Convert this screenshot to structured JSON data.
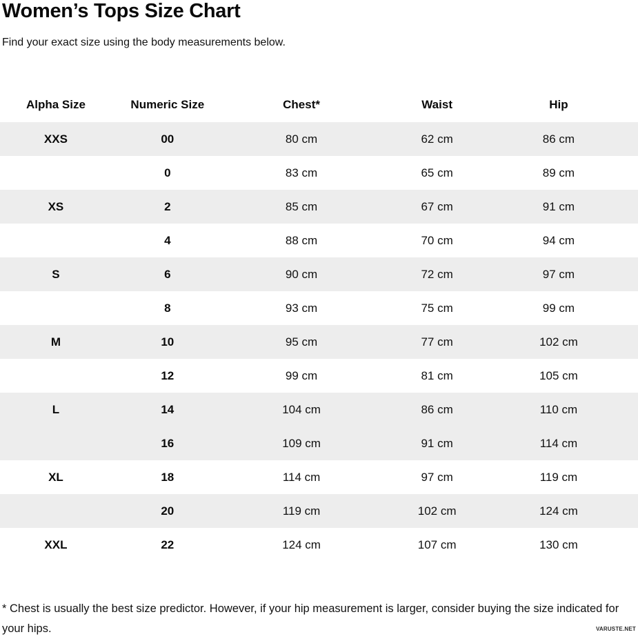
{
  "page": {
    "title": "Women’s Tops Size Chart",
    "subtitle": "Find your exact size using the body measurements below.",
    "footnote": "* Chest is usually the best size predictor. However, if your hip measurement is larger, consider buying the size indicated for your hips.",
    "watermark": "VARUSTE.NET"
  },
  "colors": {
    "stripe": "#ededed",
    "text": "#111111",
    "background": "#ffffff"
  },
  "table": {
    "columns": [
      "Alpha Size",
      "Numeric Size",
      "Chest*",
      "Waist",
      "Hip"
    ],
    "rows": [
      {
        "alpha": "XXS",
        "numeric": "00",
        "chest": "80 cm",
        "waist": "62 cm",
        "hip": "86 cm",
        "shaded": true
      },
      {
        "alpha": "",
        "numeric": "0",
        "chest": "83 cm",
        "waist": "65 cm",
        "hip": "89 cm",
        "shaded": false
      },
      {
        "alpha": "XS",
        "numeric": "2",
        "chest": "85 cm",
        "waist": "67 cm",
        "hip": "91 cm",
        "shaded": true
      },
      {
        "alpha": "",
        "numeric": "4",
        "chest": "88 cm",
        "waist": "70 cm",
        "hip": "94 cm",
        "shaded": false
      },
      {
        "alpha": "S",
        "numeric": "6",
        "chest": "90 cm",
        "waist": "72 cm",
        "hip": "97 cm",
        "shaded": true
      },
      {
        "alpha": "",
        "numeric": "8",
        "chest": "93 cm",
        "waist": "75 cm",
        "hip": "99 cm",
        "shaded": false
      },
      {
        "alpha": "M",
        "numeric": "10",
        "chest": "95 cm",
        "waist": "77 cm",
        "hip": "102 cm",
        "shaded": true
      },
      {
        "alpha": "",
        "numeric": "12",
        "chest": "99 cm",
        "waist": "81 cm",
        "hip": "105 cm",
        "shaded": false
      },
      {
        "alpha": "L",
        "numeric": "14",
        "chest": "104 cm",
        "waist": "86 cm",
        "hip": "110 cm",
        "shaded": true
      },
      {
        "alpha": "",
        "numeric": "16",
        "chest": "109 cm",
        "waist": "91 cm",
        "hip": "114 cm",
        "shaded": true
      },
      {
        "alpha": "XL",
        "numeric": "18",
        "chest": "114 cm",
        "waist": "97 cm",
        "hip": "119 cm",
        "shaded": false
      },
      {
        "alpha": "",
        "numeric": "20",
        "chest": "119 cm",
        "waist": "102 cm",
        "hip": "124 cm",
        "shaded": true
      },
      {
        "alpha": "XXL",
        "numeric": "22",
        "chest": "124 cm",
        "waist": "107 cm",
        "hip": "130 cm",
        "shaded": false
      }
    ]
  }
}
